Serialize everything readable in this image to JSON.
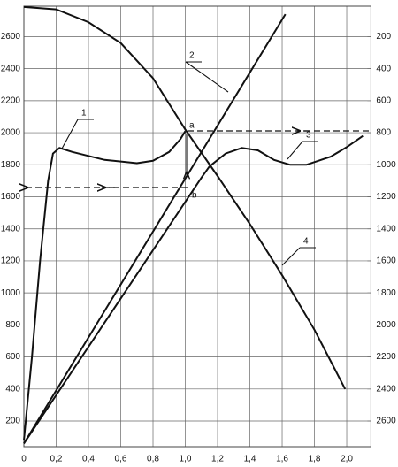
{
  "chart_data": {
    "type": "line",
    "grid": true,
    "xlim": [
      0,
      2.15
    ],
    "ylim": [
      40,
      2790
    ],
    "y2lim": [
      2760,
      10
    ],
    "xticks": [
      0,
      {
        "value": 0.2,
        "label": "0,2"
      },
      {
        "value": 0.4,
        "label": "0,4"
      },
      {
        "value": 0.6,
        "label": "0,6"
      },
      {
        "value": 0.8,
        "label": "0,8"
      },
      {
        "value": 1.0,
        "label": "1,0"
      },
      {
        "value": 1.2,
        "label": "1,2"
      },
      {
        "value": 1.4,
        "label": "1,4"
      },
      {
        "value": 1.6,
        "label": "1,6"
      },
      {
        "value": 1.8,
        "label": "1,8"
      },
      {
        "value": 2.0,
        "label": "2,0"
      }
    ],
    "yticks": [
      200,
      400,
      600,
      800,
      1000,
      1200,
      1400,
      1600,
      1800,
      2000,
      2200,
      2400,
      2600
    ],
    "y2ticks": [
      200,
      400,
      600,
      800,
      1000,
      1200,
      1400,
      1600,
      1800,
      2000,
      2200,
      2400,
      2600
    ],
    "points": [
      "a",
      "b"
    ],
    "series": [
      {
        "name": "1",
        "color": "#111111",
        "x": [
          0,
          0.05,
          0.1,
          0.15,
          0.18,
          0.22,
          0.3,
          0.5,
          0.7,
          0.8,
          0.9,
          0.97,
          1.0
        ],
        "values": [
          80,
          600,
          1200,
          1700,
          1870,
          1905,
          1880,
          1830,
          1810,
          1825,
          1880,
          1960,
          2010
        ]
      },
      {
        "name": "2",
        "color": "#111111",
        "x": [
          0,
          1.62
        ],
        "values": [
          60,
          2740
        ]
      },
      {
        "name": "3",
        "color": "#111111",
        "x": [
          0,
          1.1,
          1.15,
          1.25,
          1.35,
          1.45,
          1.55,
          1.65,
          1.75,
          1.9,
          2.0,
          2.1
        ],
        "values": [
          60,
          1720,
          1790,
          1870,
          1905,
          1890,
          1830,
          1800,
          1800,
          1850,
          1910,
          1980
        ]
      },
      {
        "name": "4",
        "color": "#111111",
        "x": [
          0,
          0.2,
          0.4,
          0.6,
          0.8,
          1.0,
          1.2,
          1.4,
          1.6,
          1.8,
          1.99
        ],
        "values": [
          2785,
          2770,
          2690,
          2560,
          2340,
          2020,
          1730,
          1430,
          1110,
          770,
          400
        ]
      }
    ]
  }
}
